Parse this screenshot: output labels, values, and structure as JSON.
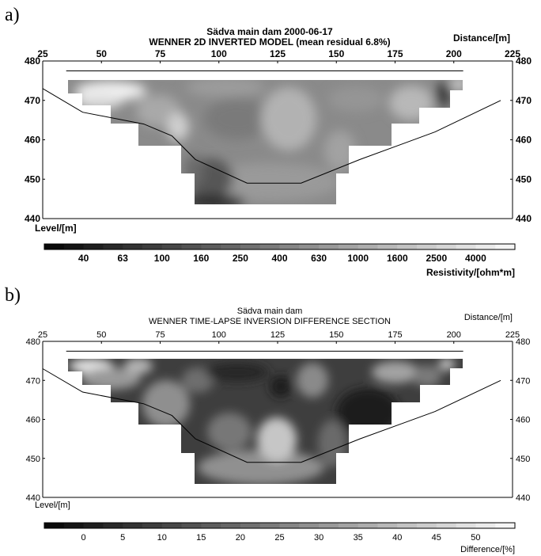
{
  "chart_data": [
    {
      "type": "heatmap",
      "panel_label": "a)",
      "title": "Sädva main dam 2000-06-17",
      "subtitle": "WENNER 2D INVERTED MODEL (mean residual 6.8%)",
      "xlabel": "Distance/[m]",
      "ylabel": "Level/[m]",
      "xlim": [
        25,
        225
      ],
      "ylim": [
        440,
        480
      ],
      "x_ticks": [
        "25",
        "50",
        "75",
        "100",
        "125",
        "150",
        "175",
        "200",
        "225"
      ],
      "y_ticks": [
        "440",
        "450",
        "460",
        "470",
        "480"
      ],
      "colorbar_label": "Resistivity/[ohm*m]",
      "colorbar_ticks": [
        "40",
        "63",
        "100",
        "160",
        "250",
        "400",
        "630",
        "1000",
        "1600",
        "2500",
        "4000"
      ],
      "colorbar_scale": "log",
      "dam_profile": {
        "x": [
          25,
          42,
          68,
          80,
          90,
          112,
          135,
          160,
          192,
          220
        ],
        "y": [
          473,
          467,
          464,
          461,
          455,
          449,
          449,
          455,
          462,
          470
        ]
      },
      "crest_line": {
        "x": [
          35,
          204
        ],
        "y": [
          477.5,
          477.5
        ]
      }
    },
    {
      "type": "heatmap",
      "panel_label": "b)",
      "title": "Sädva main dam",
      "subtitle": "WENNER TIME-LAPSE INVERSION DIFFERENCE SECTION",
      "xlabel": "Distance/[m]",
      "ylabel": "Level/[m]",
      "xlim": [
        25,
        225
      ],
      "ylim": [
        440,
        480
      ],
      "x_ticks": [
        "25",
        "50",
        "75",
        "100",
        "125",
        "150",
        "175",
        "200",
        "225"
      ],
      "y_ticks": [
        "440",
        "450",
        "460",
        "470",
        "480"
      ],
      "colorbar_label": "Difference/[%]",
      "colorbar_ticks": [
        "0",
        "5",
        "10",
        "15",
        "20",
        "25",
        "30",
        "35",
        "40",
        "45",
        "50"
      ],
      "colorbar_scale": "linear",
      "dam_profile": {
        "x": [
          25,
          42,
          68,
          80,
          90,
          112,
          135,
          160,
          192,
          220
        ],
        "y": [
          473,
          467,
          464,
          461,
          455,
          449,
          449,
          455,
          462,
          470
        ]
      },
      "crest_line": {
        "x": [
          35,
          204
        ],
        "y": [
          477.5,
          477.5
        ]
      }
    }
  ]
}
